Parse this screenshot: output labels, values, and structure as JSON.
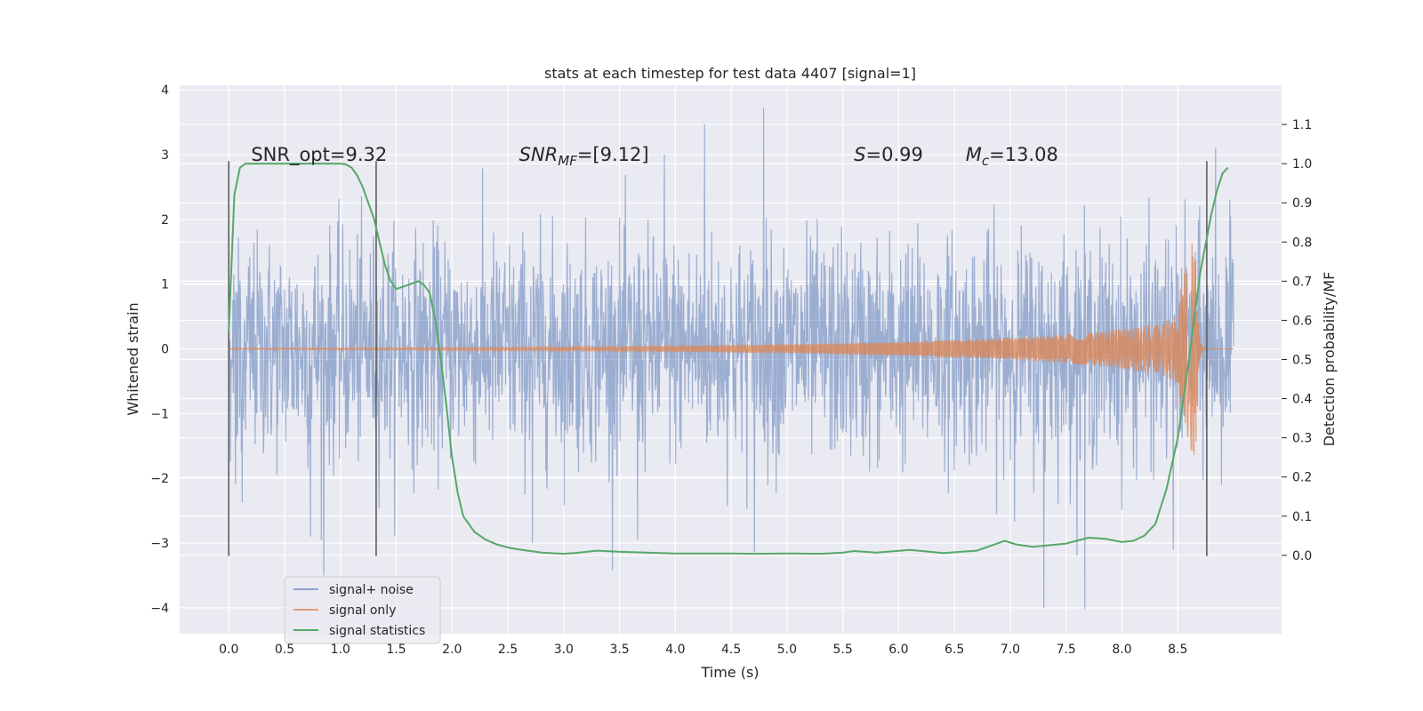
{
  "chart_data": {
    "type": "line",
    "title": "stats at each timestep for test data 4407 [signal=1]",
    "xlabel": "Time (s)",
    "ylabel": "Whitened strain",
    "ylabel_right": "Detection probability/MF",
    "xlim": [
      -0.44,
      9.43
    ],
    "ylim": [
      -4.4,
      4.07
    ],
    "ylim_right": [
      -0.2,
      1.2
    ],
    "xticks": [
      "0.0",
      "0.5",
      "1.0",
      "1.5",
      "2.0",
      "2.5",
      "3.0",
      "3.5",
      "4.0",
      "4.5",
      "5.0",
      "5.5",
      "6.0",
      "6.5",
      "7.0",
      "7.5",
      "8.0",
      "8.5"
    ],
    "yticks": [
      "4",
      "3",
      "2",
      "1",
      "0",
      "−1",
      "−2",
      "−3",
      "−4"
    ],
    "yticks_right": [
      "1.1",
      "1.0",
      "0.9",
      "0.8",
      "0.7",
      "0.6",
      "0.5",
      "0.4",
      "0.3",
      "0.2",
      "0.1",
      "0.0"
    ],
    "annotations": [
      {
        "text": "SNR_opt=9.32",
        "x": 0.2,
        "y": 2.9
      },
      {
        "text": "SNR",
        "sub": "MF",
        "suffix": "=[9.12]",
        "x": 2.6,
        "y": 2.9
      },
      {
        "text": "S",
        "suffix": "=0.99",
        "x": 5.6,
        "y": 2.9
      },
      {
        "text": "M",
        "sub": "c",
        "suffix": "=13.08",
        "x": 6.6,
        "y": 2.9
      }
    ],
    "vertical_markers": [
      0.0,
      1.32,
      8.76
    ],
    "marker_range": [
      -3.2,
      2.9
    ],
    "series": [
      {
        "name": "signal+ noise",
        "color": "#4c72b0",
        "noise_sigma": 0.85,
        "x_range": [
          0.0,
          9.0
        ],
        "spikes": [
          {
            "x": 4.79,
            "y": 3.72
          },
          {
            "x": 4.26,
            "y": 3.47
          },
          {
            "x": 3.9,
            "y": 3.0
          },
          {
            "x": 7.3,
            "y": -4.0
          },
          {
            "x": 7.67,
            "y": -4.02
          },
          {
            "x": 0.85,
            "y": -3.5
          },
          {
            "x": 4.71,
            "y": -3.15
          },
          {
            "x": 8.84,
            "y": 3.1
          },
          {
            "x": 8.46,
            "y": -3.1
          },
          {
            "x": 2.72,
            "y": -3.0
          },
          {
            "x": 0.73,
            "y": -2.9
          },
          {
            "x": 3.66,
            "y": -2.95
          }
        ]
      },
      {
        "name": "signal only",
        "color": "#dd8452",
        "peak_time": 8.66,
        "peak_amplitude": 1.85,
        "x_range": [
          0.0,
          9.0
        ]
      },
      {
        "name": "signal statistics",
        "color": "#55a868",
        "axis": "right",
        "x": [
          0.0,
          0.05,
          0.1,
          0.15,
          0.2,
          0.3,
          0.5,
          0.8,
          1.0,
          1.05,
          1.1,
          1.15,
          1.2,
          1.25,
          1.3,
          1.35,
          1.4,
          1.45,
          1.5,
          1.55,
          1.6,
          1.7,
          1.75,
          1.8,
          1.85,
          1.9,
          1.95,
          2.0,
          2.05,
          2.1,
          2.2,
          2.3,
          2.4,
          2.5,
          2.6,
          2.8,
          3.0,
          3.1,
          3.3,
          3.5,
          4.0,
          4.5,
          4.7,
          5.0,
          5.3,
          5.5,
          5.6,
          5.8,
          6.1,
          6.4,
          6.7,
          6.8,
          6.95,
          7.05,
          7.2,
          7.5,
          7.7,
          7.85,
          8.0,
          8.1,
          8.2,
          8.3,
          8.4,
          8.5,
          8.6,
          8.7,
          8.8,
          8.85,
          8.9,
          8.95
        ],
        "values": [
          0.57,
          0.92,
          0.99,
          1.0,
          1.0,
          1.0,
          1.0,
          1.0,
          1.0,
          0.998,
          0.99,
          0.97,
          0.94,
          0.9,
          0.86,
          0.8,
          0.74,
          0.7,
          0.68,
          0.685,
          0.69,
          0.7,
          0.69,
          0.67,
          0.6,
          0.5,
          0.38,
          0.25,
          0.16,
          0.1,
          0.06,
          0.04,
          0.028,
          0.02,
          0.015,
          0.007,
          0.004,
          0.006,
          0.012,
          0.009,
          0.005,
          0.005,
          0.004,
          0.005,
          0.004,
          0.007,
          0.011,
          0.007,
          0.014,
          0.006,
          0.012,
          0.022,
          0.037,
          0.028,
          0.022,
          0.03,
          0.045,
          0.042,
          0.034,
          0.037,
          0.05,
          0.08,
          0.17,
          0.3,
          0.5,
          0.72,
          0.87,
          0.93,
          0.975,
          0.99
        ]
      }
    ],
    "legend": {
      "placement": "lower-left",
      "entries": [
        "signal+ noise",
        "signal only",
        "signal statistics"
      ]
    },
    "grid": true,
    "background": "#eaeaf2"
  }
}
